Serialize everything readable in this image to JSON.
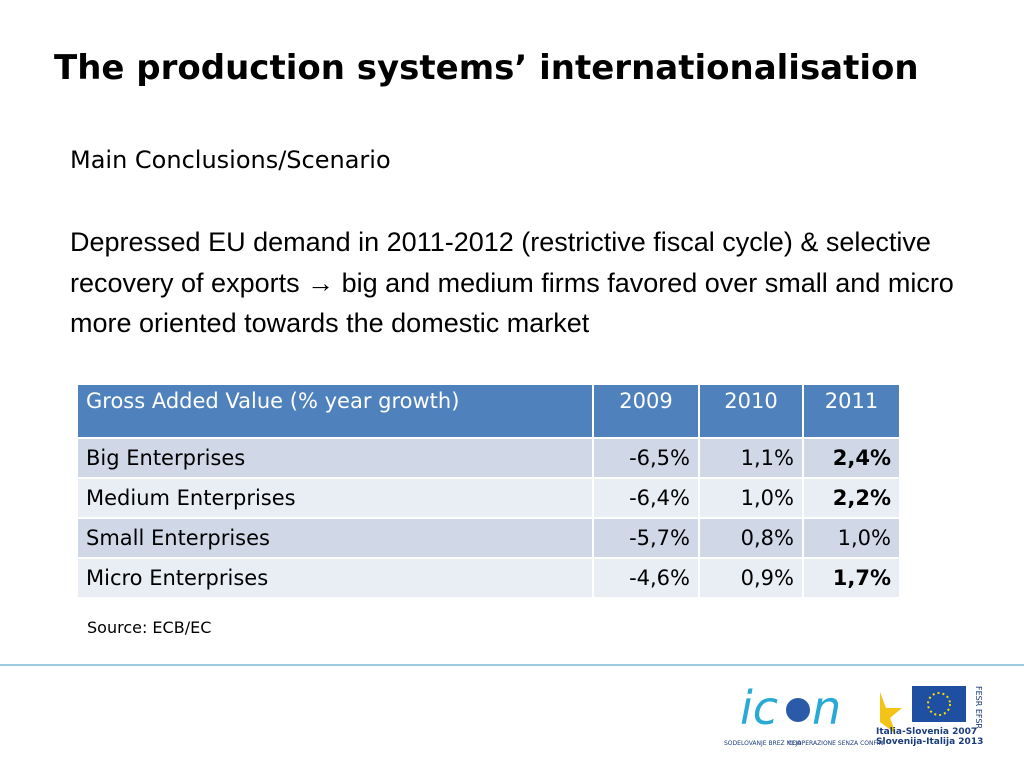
{
  "title": "The production systems’ internationalisation",
  "subtitle": "Main Conclusions/Scenario",
  "paragraph": "Depressed EU demand in 2011-2012 (restrictive fiscal cycle) & selective recovery of exports → big and medium firms favored over small and micro more oriented towards the domestic market",
  "table": {
    "header": [
      "Gross Added Value  (% year growth)",
      "2009",
      "2010",
      "2011"
    ],
    "rows": [
      [
        "Big Enterprises",
        "-6,5%",
        "1,1%",
        "2,4%"
      ],
      [
        "Medium Enterprises",
        "-6,4%",
        "1,0%",
        "2,2%"
      ],
      [
        "Small Enterprises",
        "-5,7%",
        "0,8%",
        "1,0%"
      ],
      [
        "Micro Enterprises",
        "-4,6%",
        "0,9%",
        "1,7%"
      ]
    ]
  },
  "source": "Source: ECB/EC",
  "logos": {
    "icon_caption_1": "SODELOVANJE BREZ MEJA",
    "icon_caption_2": "COOPERAZIONE SENZA CONFINI",
    "program_1": "Italia-Slovenia 2007",
    "program_2": "Slovenija-Italija 2013",
    "fund": "FESR EFSR"
  }
}
